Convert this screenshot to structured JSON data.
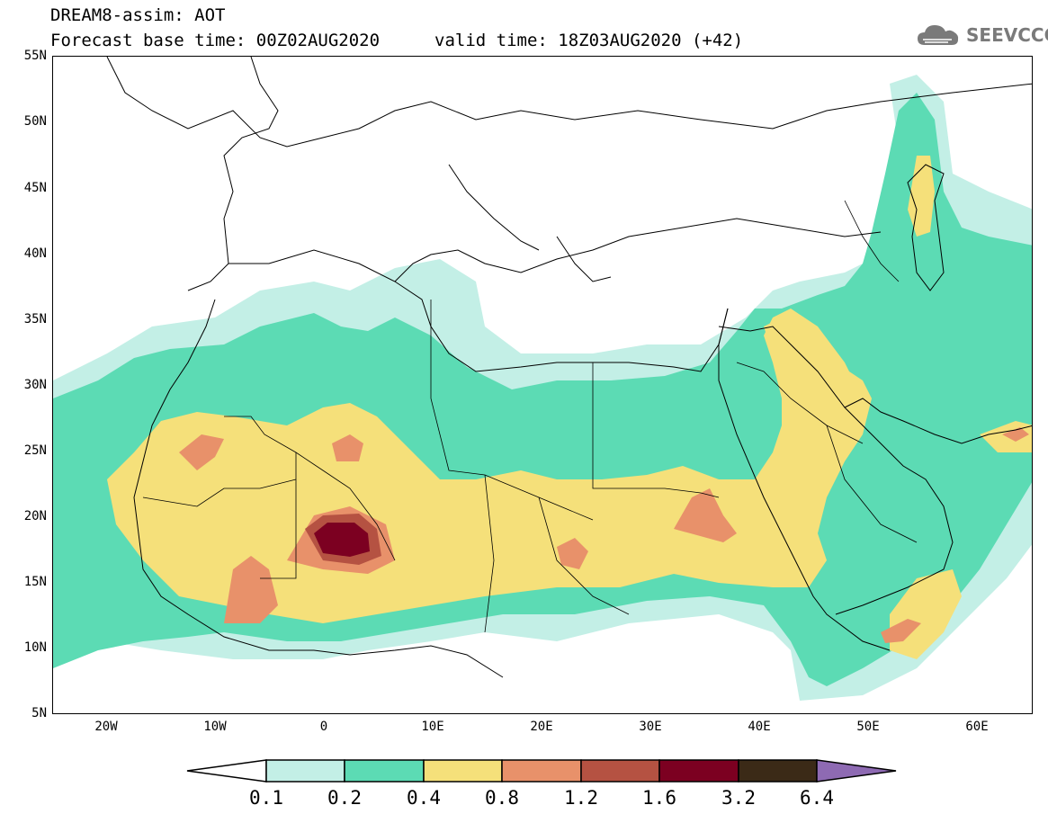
{
  "header": {
    "title_line1": "DREAM8-assim: AOT",
    "base_time": "Forecast base time: 00Z02AUG2020",
    "valid_time": "valid time: 18Z03AUG2020 (+42)",
    "logo_text": "SEEVCCC"
  },
  "map": {
    "variable": "AOT",
    "lon_range": [
      -25,
      65
    ],
    "lat_range": [
      5,
      55
    ],
    "lat_ticks": [
      "55N",
      "50N",
      "45N",
      "40N",
      "35N",
      "30N",
      "25N",
      "20N",
      "15N",
      "10N",
      "5N"
    ],
    "lon_ticks": [
      "20W",
      "10W",
      "0",
      "10E",
      "20E",
      "30E",
      "40E",
      "50E",
      "60E"
    ]
  },
  "colorbar": {
    "thresholds": [
      "0.1",
      "0.2",
      "0.4",
      "0.8",
      "1.2",
      "1.6",
      "3.2",
      "6.4"
    ],
    "colors": [
      "#ffffff",
      "#c3efe6",
      "#5cdbb4",
      "#f5e07a",
      "#e8916a",
      "#b55242",
      "#7c0021",
      "#3b2a17",
      "#8e6ab3"
    ]
  }
}
